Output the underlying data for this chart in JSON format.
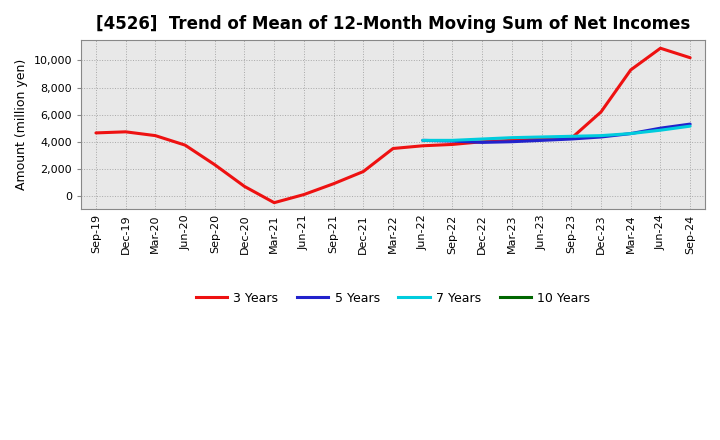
{
  "title": "[4526]  Trend of Mean of 12-Month Moving Sum of Net Incomes",
  "ylabel": "Amount (million yen)",
  "background_color": "#ffffff",
  "plot_bg_color": "#e8e8e8",
  "grid_color": "#999999",
  "x_labels": [
    "Sep-19",
    "Dec-19",
    "Mar-20",
    "Jun-20",
    "Sep-20",
    "Dec-20",
    "Mar-21",
    "Jun-21",
    "Sep-21",
    "Dec-21",
    "Mar-22",
    "Jun-22",
    "Sep-22",
    "Dec-22",
    "Mar-23",
    "Jun-23",
    "Sep-23",
    "Dec-23",
    "Mar-24",
    "Jun-24",
    "Sep-24"
  ],
  "ylim": [
    -1000,
    11500
  ],
  "yticks": [
    0,
    2000,
    4000,
    6000,
    8000,
    10000
  ],
  "series": {
    "3 Years": {
      "color": "#ee1111",
      "data": [
        4650,
        4730,
        4450,
        3750,
        2300,
        700,
        -500,
        100,
        900,
        1800,
        3500,
        3700,
        3800,
        4000,
        4100,
        4200,
        4250,
        6200,
        9300,
        10900,
        10200
      ]
    },
    "5 Years": {
      "color": "#2222cc",
      "data": [
        null,
        null,
        null,
        null,
        null,
        null,
        null,
        null,
        null,
        null,
        null,
        4100,
        4050,
        3950,
        4000,
        4100,
        4200,
        4350,
        4600,
        5000,
        5300
      ]
    },
    "7 Years": {
      "color": "#00ccdd",
      "data": [
        null,
        null,
        null,
        null,
        null,
        null,
        null,
        null,
        null,
        null,
        null,
        4100,
        4100,
        4200,
        4300,
        4350,
        4400,
        4450,
        4600,
        4850,
        5150
      ]
    },
    "10 Years": {
      "color": "#006600",
      "data": [
        null,
        null,
        null,
        null,
        null,
        null,
        null,
        null,
        null,
        null,
        null,
        null,
        null,
        null,
        null,
        null,
        null,
        null,
        null,
        null,
        null
      ]
    }
  },
  "legend_labels": [
    "3 Years",
    "5 Years",
    "7 Years",
    "10 Years"
  ],
  "legend_colors": [
    "#ee1111",
    "#2222cc",
    "#00ccdd",
    "#006600"
  ],
  "title_fontsize": 12,
  "tick_fontsize": 8,
  "ylabel_fontsize": 9
}
